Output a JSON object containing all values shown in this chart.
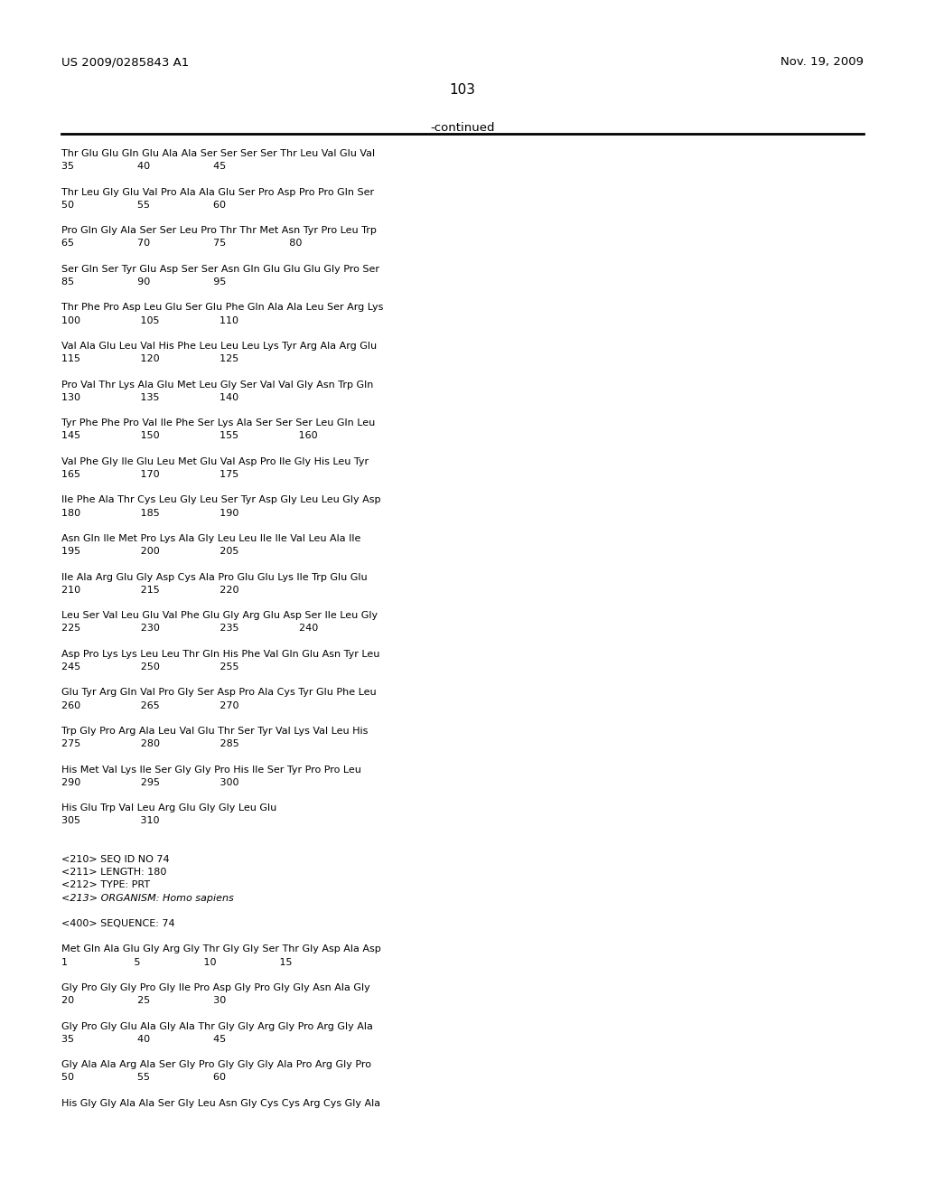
{
  "bg_color": "#ffffff",
  "header_left": "US 2009/0285843 A1",
  "header_right": "Nov. 19, 2009",
  "page_number": "103",
  "continued_label": "-continued",
  "body_lines": [
    [
      "Thr Glu Glu Gln Glu Ala Ala Ser Ser Ser Ser Thr Leu Val Glu Val",
      "normal"
    ],
    [
      "35                    40                    45",
      "normal"
    ],
    [
      "",
      "normal"
    ],
    [
      "Thr Leu Gly Glu Val Pro Ala Ala Glu Ser Pro Asp Pro Pro Gln Ser",
      "normal"
    ],
    [
      "50                    55                    60",
      "normal"
    ],
    [
      "",
      "normal"
    ],
    [
      "Pro Gln Gly Ala Ser Ser Leu Pro Thr Thr Met Asn Tyr Pro Leu Trp",
      "normal"
    ],
    [
      "65                    70                    75                    80",
      "normal"
    ],
    [
      "",
      "normal"
    ],
    [
      "Ser Gln Ser Tyr Glu Asp Ser Ser Asn Gln Glu Glu Glu Gly Pro Ser",
      "normal"
    ],
    [
      "85                    90                    95",
      "normal"
    ],
    [
      "",
      "normal"
    ],
    [
      "Thr Phe Pro Asp Leu Glu Ser Glu Phe Gln Ala Ala Leu Ser Arg Lys",
      "normal"
    ],
    [
      "100                   105                   110",
      "normal"
    ],
    [
      "",
      "normal"
    ],
    [
      "Val Ala Glu Leu Val His Phe Leu Leu Leu Lys Tyr Arg Ala Arg Glu",
      "normal"
    ],
    [
      "115                   120                   125",
      "normal"
    ],
    [
      "",
      "normal"
    ],
    [
      "Pro Val Thr Lys Ala Glu Met Leu Gly Ser Val Val Gly Asn Trp Gln",
      "normal"
    ],
    [
      "130                   135                   140",
      "normal"
    ],
    [
      "",
      "normal"
    ],
    [
      "Tyr Phe Phe Pro Val Ile Phe Ser Lys Ala Ser Ser Ser Leu Gln Leu",
      "normal"
    ],
    [
      "145                   150                   155                   160",
      "normal"
    ],
    [
      "",
      "normal"
    ],
    [
      "Val Phe Gly Ile Glu Leu Met Glu Val Asp Pro Ile Gly His Leu Tyr",
      "normal"
    ],
    [
      "165                   170                   175",
      "normal"
    ],
    [
      "",
      "normal"
    ],
    [
      "Ile Phe Ala Thr Cys Leu Gly Leu Ser Tyr Asp Gly Leu Leu Gly Asp",
      "normal"
    ],
    [
      "180                   185                   190",
      "normal"
    ],
    [
      "",
      "normal"
    ],
    [
      "Asn Gln Ile Met Pro Lys Ala Gly Leu Leu Ile Ile Val Leu Ala Ile",
      "normal"
    ],
    [
      "195                   200                   205",
      "normal"
    ],
    [
      "",
      "normal"
    ],
    [
      "Ile Ala Arg Glu Gly Asp Cys Ala Pro Glu Glu Lys Ile Trp Glu Glu",
      "normal"
    ],
    [
      "210                   215                   220",
      "normal"
    ],
    [
      "",
      "normal"
    ],
    [
      "Leu Ser Val Leu Glu Val Phe Glu Gly Arg Glu Asp Ser Ile Leu Gly",
      "normal"
    ],
    [
      "225                   230                   235                   240",
      "normal"
    ],
    [
      "",
      "normal"
    ],
    [
      "Asp Pro Lys Lys Leu Leu Thr Gln His Phe Val Gln Glu Asn Tyr Leu",
      "normal"
    ],
    [
      "245                   250                   255",
      "normal"
    ],
    [
      "",
      "normal"
    ],
    [
      "Glu Tyr Arg Gln Val Pro Gly Ser Asp Pro Ala Cys Tyr Glu Phe Leu",
      "normal"
    ],
    [
      "260                   265                   270",
      "normal"
    ],
    [
      "",
      "normal"
    ],
    [
      "Trp Gly Pro Arg Ala Leu Val Glu Thr Ser Tyr Val Lys Val Leu His",
      "normal"
    ],
    [
      "275                   280                   285",
      "normal"
    ],
    [
      "",
      "normal"
    ],
    [
      "His Met Val Lys Ile Ser Gly Gly Pro His Ile Ser Tyr Pro Pro Leu",
      "normal"
    ],
    [
      "290                   295                   300",
      "normal"
    ],
    [
      "",
      "normal"
    ],
    [
      "His Glu Trp Val Leu Arg Glu Gly Gly Leu Glu",
      "normal"
    ],
    [
      "305                   310",
      "normal"
    ],
    [
      "",
      "normal"
    ],
    [
      "",
      "normal"
    ],
    [
      "<210> SEQ ID NO 74",
      "normal"
    ],
    [
      "<211> LENGTH: 180",
      "normal"
    ],
    [
      "<212> TYPE: PRT",
      "normal"
    ],
    [
      "<213> ORGANISM: Homo sapiens",
      "italic"
    ],
    [
      "",
      "normal"
    ],
    [
      "<400> SEQUENCE: 74",
      "normal"
    ],
    [
      "",
      "normal"
    ],
    [
      "Met Gln Ala Glu Gly Arg Gly Thr Gly Gly Ser Thr Gly Asp Ala Asp",
      "normal"
    ],
    [
      "1                     5                    10                    15",
      "normal"
    ],
    [
      "",
      "normal"
    ],
    [
      "Gly Pro Gly Gly Pro Gly Ile Pro Asp Gly Pro Gly Gly Asn Ala Gly",
      "normal"
    ],
    [
      "20                    25                    30",
      "normal"
    ],
    [
      "",
      "normal"
    ],
    [
      "Gly Pro Gly Glu Ala Gly Ala Thr Gly Gly Arg Gly Pro Arg Gly Ala",
      "normal"
    ],
    [
      "35                    40                    45",
      "normal"
    ],
    [
      "",
      "normal"
    ],
    [
      "Gly Ala Ala Arg Ala Ser Gly Pro Gly Gly Gly Ala Pro Arg Gly Pro",
      "normal"
    ],
    [
      "50                    55                    60",
      "normal"
    ],
    [
      "",
      "normal"
    ],
    [
      "His Gly Gly Ala Ala Ser Gly Leu Asn Gly Cys Cys Arg Cys Gly Ala",
      "normal"
    ]
  ]
}
